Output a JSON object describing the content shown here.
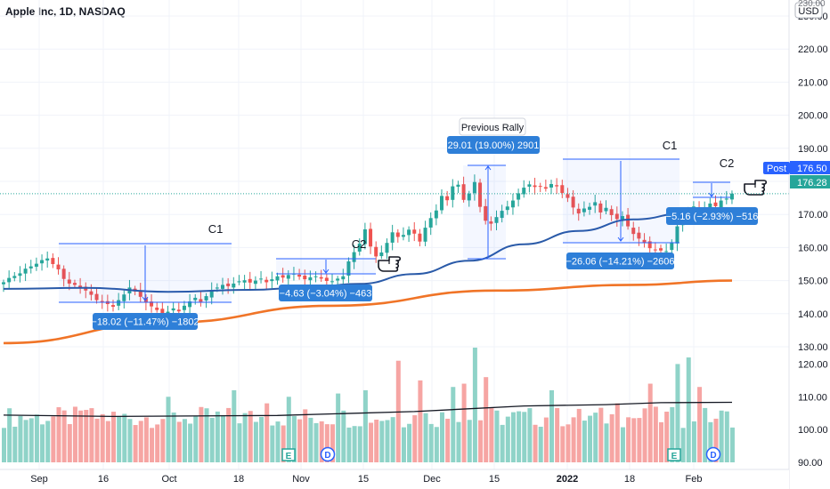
{
  "header": {
    "symbol_title": "Apple Inc, 1D, NASDAQ",
    "currency": "USD"
  },
  "price_tags": {
    "post_label": "Post",
    "post_value": "176.50",
    "last_value": "176.28",
    "colors": {
      "post": "#2962ff",
      "last": "#26a69a"
    }
  },
  "chart_data": {
    "type": "candlestick",
    "x_ticks": [
      "Sep",
      "16",
      "Oct",
      "18",
      "Nov",
      "15",
      "Dec",
      "15",
      "2022",
      "18",
      "Feb"
    ],
    "price_axis": {
      "ticks": [
        130.0,
        140.0,
        150.0,
        160.0,
        170.0,
        180.0,
        190.0,
        200.0,
        210.0,
        220.0,
        230.0
      ],
      "tick_labels": [
        "130.00",
        "140.00",
        "150.00",
        "160.00",
        "170.00",
        "180.00",
        "190.00",
        "200.00",
        "210.00",
        "220.00",
        "230.00"
      ]
    },
    "volume_axis": {
      "ticks": [
        90,
        100,
        110,
        120
      ],
      "tick_labels": [
        "90.00",
        "100.00",
        "110.00",
        "120.00"
      ]
    },
    "closes": [
      149.5,
      150.8,
      151.4,
      152.2,
      153.6,
      154.3,
      155.1,
      156.2,
      156.7,
      155.0,
      153.4,
      150.5,
      149.1,
      148.7,
      147.9,
      147.0,
      145.7,
      144.1,
      143.5,
      142.9,
      142.1,
      144.1,
      145.8,
      147.9,
      146.7,
      145.1,
      143.3,
      142.2,
      141.1,
      139.9,
      140.6,
      141.6,
      140.7,
      142.4,
      143.7,
      144.8,
      143.6,
      145.3,
      147.2,
      147.9,
      148.7,
      148.3,
      149.1,
      149.8,
      150.1,
      149.4,
      150.0,
      150.6,
      149.5,
      150.4,
      151.3,
      150.9,
      151.7,
      152.1,
      151.2,
      150.4,
      151.0,
      151.3,
      150.6,
      149.9,
      149.8,
      150.6,
      151.3,
      155.8,
      158.6,
      161.2,
      165.5,
      160.3,
      157.3,
      158.5,
      161.4,
      164.6,
      163.2,
      163.8,
      165.4,
      164.2,
      161.8,
      166.0,
      168.9,
      171.2,
      175.6,
      174.3,
      178.5,
      179.0,
      174.4,
      176.3,
      179.8,
      172.3,
      168.1,
      167.2,
      169.2,
      171.1,
      172.4,
      174.2,
      176.4,
      178.1,
      179.1,
      178.3,
      178.6,
      177.8,
      179.2,
      178.5,
      176.5,
      175.0,
      172.1,
      170.3,
      171.8,
      172.3,
      173.7,
      170.6,
      172.0,
      169.8,
      168.6,
      169.5,
      166.4,
      164.1,
      162.7,
      161.5,
      159.8,
      159.4,
      159.1,
      158.9,
      161.6,
      166.4,
      168.9,
      170.1,
      172.4,
      171.5,
      172.0,
      173.3,
      172.5,
      174.2,
      174.8,
      176.3
    ],
    "ma50": [
      [
        0,
        147.5
      ],
      [
        15,
        147.8
      ],
      [
        30,
        146.6
      ],
      [
        45,
        147.2
      ],
      [
        55,
        147.9
      ],
      [
        65,
        149.0
      ],
      [
        75,
        152.0
      ],
      [
        85,
        156.0
      ],
      [
        95,
        161.0
      ],
      [
        105,
        165.0
      ],
      [
        115,
        168.5
      ],
      [
        125,
        170.5
      ],
      [
        133,
        171.5
      ]
    ],
    "ma200": [
      [
        0,
        131.1
      ],
      [
        30,
        137.3
      ],
      [
        60,
        142.4
      ],
      [
        90,
        147.0
      ],
      [
        115,
        148.7
      ],
      [
        133,
        150.0
      ]
    ],
    "volume_ma": [
      [
        0,
        104.4
      ],
      [
        20,
        104.0
      ],
      [
        50,
        104.3
      ],
      [
        75,
        105.5
      ],
      [
        95,
        107.2
      ],
      [
        110,
        107.6
      ],
      [
        120,
        108.2
      ],
      [
        133,
        108.3
      ]
    ],
    "annotations": {
      "labels": [
        "C1",
        "C2",
        "C1",
        "C2",
        "Previous Rally"
      ],
      "measures": [
        "−18.02 (−11.47%) −1802",
        "−4.63 (−3.04%) −463",
        "29.01 (19.00%) 2901",
        "−26.06 (−14.21%) −2606",
        "−5.16 (−2.93%) −516"
      ]
    },
    "event_markers": [
      "E",
      "D",
      "E",
      "D"
    ],
    "colors": {
      "up": "#26a69a",
      "down": "#ef5350",
      "ma50": "#2a5aa8",
      "ma200": "#f07427",
      "measure": "#2962ff"
    }
  }
}
